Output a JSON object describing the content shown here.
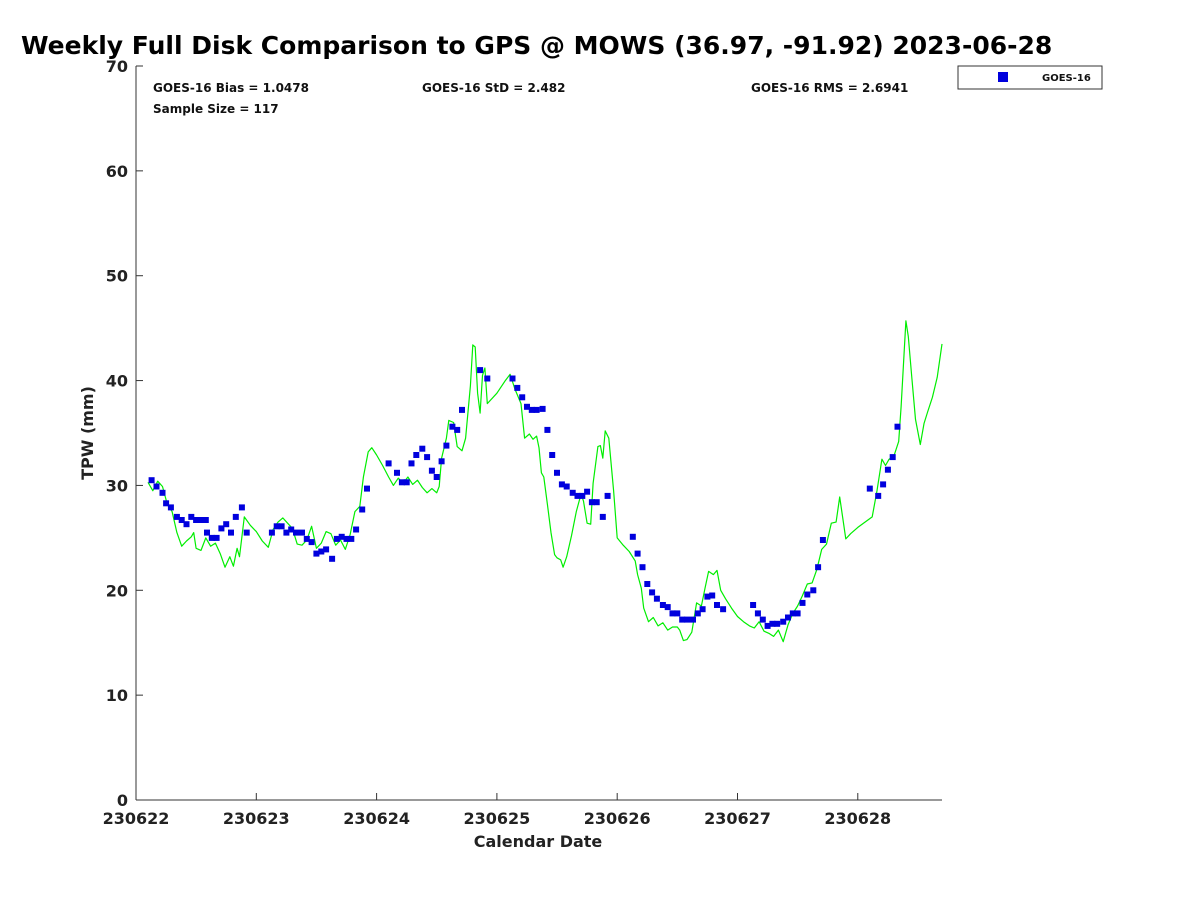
{
  "chart_data": {
    "type": "scatter",
    "title": "Weekly Full Disk Comparison to GPS @ MOWS (36.97, -91.92) 2023-06-28",
    "xlabel": "Calendar Date",
    "ylabel": "TPW (mm)",
    "xlim": [
      0,
      6.7
    ],
    "ylim": [
      0,
      70
    ],
    "x_ticks": [
      0,
      1,
      2,
      3,
      4,
      5,
      6
    ],
    "x_tick_labels": [
      "230622",
      "230623",
      "230624",
      "230625",
      "230626",
      "230627",
      "230628"
    ],
    "y_ticks": [
      0,
      10,
      20,
      30,
      40,
      50,
      60,
      70
    ],
    "y_tick_labels": [
      "0",
      "10",
      "20",
      "30",
      "40",
      "50",
      "60",
      "70"
    ],
    "grid": false,
    "legend": {
      "position": "top-right-outside",
      "entries": [
        "GOES-16"
      ]
    },
    "stats": {
      "bias": "GOES-16 Bias = 1.0478",
      "std": "GOES-16 StD = 2.482",
      "rms": "GOES-16 RMS = 2.6941",
      "sample": "Sample Size = 117"
    },
    "series": [
      {
        "name": "GOES-16",
        "kind": "scatter",
        "marker": "square",
        "color": "#0000dd",
        "points": [
          [
            0.13,
            30.5
          ],
          [
            0.17,
            29.9
          ],
          [
            0.22,
            29.3
          ],
          [
            0.25,
            28.3
          ],
          [
            0.29,
            27.9
          ],
          [
            0.34,
            27.0
          ],
          [
            0.38,
            26.7
          ],
          [
            0.42,
            26.3
          ],
          [
            0.46,
            27.0
          ],
          [
            0.5,
            26.7
          ],
          [
            0.54,
            26.7
          ],
          [
            0.58,
            26.7
          ],
          [
            0.59,
            25.5
          ],
          [
            0.63,
            25.0
          ],
          [
            0.67,
            25.0
          ],
          [
            0.71,
            25.9
          ],
          [
            0.75,
            26.3
          ],
          [
            0.79,
            25.5
          ],
          [
            0.83,
            27.0
          ],
          [
            0.88,
            27.9
          ],
          [
            0.92,
            25.5
          ],
          [
            1.13,
            25.5
          ],
          [
            1.17,
            26.1
          ],
          [
            1.21,
            26.1
          ],
          [
            1.25,
            25.5
          ],
          [
            1.29,
            25.8
          ],
          [
            1.33,
            25.5
          ],
          [
            1.38,
            25.5
          ],
          [
            1.42,
            24.9
          ],
          [
            1.46,
            24.6
          ],
          [
            1.5,
            23.5
          ],
          [
            1.54,
            23.7
          ],
          [
            1.58,
            23.9
          ],
          [
            1.63,
            23.0
          ],
          [
            1.67,
            24.9
          ],
          [
            1.71,
            25.1
          ],
          [
            1.75,
            24.9
          ],
          [
            1.79,
            24.9
          ],
          [
            1.83,
            25.8
          ],
          [
            1.88,
            27.7
          ],
          [
            1.92,
            29.7
          ],
          [
            2.1,
            32.1
          ],
          [
            2.17,
            31.2
          ],
          [
            2.21,
            30.3
          ],
          [
            2.25,
            30.3
          ],
          [
            2.29,
            32.1
          ],
          [
            2.33,
            32.9
          ],
          [
            2.38,
            33.5
          ],
          [
            2.42,
            32.7
          ],
          [
            2.46,
            31.4
          ],
          [
            2.5,
            30.8
          ],
          [
            2.54,
            32.3
          ],
          [
            2.58,
            33.8
          ],
          [
            2.63,
            35.6
          ],
          [
            2.67,
            35.3
          ],
          [
            2.71,
            37.2
          ],
          [
            2.86,
            41.0
          ],
          [
            2.92,
            40.2
          ],
          [
            3.13,
            40.2
          ],
          [
            3.17,
            39.3
          ],
          [
            3.21,
            38.4
          ],
          [
            3.25,
            37.5
          ],
          [
            3.29,
            37.2
          ],
          [
            3.33,
            37.2
          ],
          [
            3.38,
            37.3
          ],
          [
            3.42,
            35.3
          ],
          [
            3.46,
            32.9
          ],
          [
            3.5,
            31.2
          ],
          [
            3.54,
            30.1
          ],
          [
            3.58,
            29.9
          ],
          [
            3.63,
            29.3
          ],
          [
            3.67,
            29.0
          ],
          [
            3.71,
            29.0
          ],
          [
            3.75,
            29.4
          ],
          [
            3.79,
            28.4
          ],
          [
            3.83,
            28.4
          ],
          [
            3.88,
            27.0
          ],
          [
            3.92,
            29.0
          ],
          [
            4.13,
            25.1
          ],
          [
            4.17,
            23.5
          ],
          [
            4.21,
            22.2
          ],
          [
            4.25,
            20.6
          ],
          [
            4.29,
            19.8
          ],
          [
            4.33,
            19.2
          ],
          [
            4.38,
            18.6
          ],
          [
            4.42,
            18.4
          ],
          [
            4.46,
            17.8
          ],
          [
            4.5,
            17.8
          ],
          [
            4.54,
            17.2
          ],
          [
            4.58,
            17.2
          ],
          [
            4.63,
            17.2
          ],
          [
            4.67,
            17.8
          ],
          [
            4.71,
            18.2
          ],
          [
            4.75,
            19.4
          ],
          [
            4.79,
            19.5
          ],
          [
            4.83,
            18.6
          ],
          [
            4.88,
            18.2
          ],
          [
            5.13,
            18.6
          ],
          [
            5.17,
            17.8
          ],
          [
            5.21,
            17.2
          ],
          [
            5.25,
            16.6
          ],
          [
            5.29,
            16.8
          ],
          [
            5.33,
            16.8
          ],
          [
            5.38,
            17.0
          ],
          [
            5.42,
            17.4
          ],
          [
            5.46,
            17.8
          ],
          [
            5.5,
            17.8
          ],
          [
            5.54,
            18.8
          ],
          [
            5.58,
            19.6
          ],
          [
            5.63,
            20.0
          ],
          [
            5.67,
            22.2
          ],
          [
            5.71,
            24.8
          ],
          [
            6.1,
            29.7
          ],
          [
            6.17,
            29.0
          ],
          [
            6.21,
            30.1
          ],
          [
            6.25,
            31.5
          ],
          [
            6.29,
            32.7
          ],
          [
            6.33,
            35.6
          ]
        ]
      },
      {
        "name": "GPS",
        "kind": "line",
        "color": "#00ee00",
        "points": [
          [
            0.1,
            30.3
          ],
          [
            0.14,
            29.5
          ],
          [
            0.18,
            30.4
          ],
          [
            0.22,
            29.9
          ],
          [
            0.26,
            28.2
          ],
          [
            0.3,
            27.5
          ],
          [
            0.34,
            25.5
          ],
          [
            0.38,
            24.2
          ],
          [
            0.42,
            24.7
          ],
          [
            0.46,
            25.1
          ],
          [
            0.48,
            25.5
          ],
          [
            0.5,
            24.0
          ],
          [
            0.54,
            23.8
          ],
          [
            0.58,
            25.0
          ],
          [
            0.62,
            24.2
          ],
          [
            0.66,
            24.5
          ],
          [
            0.7,
            23.5
          ],
          [
            0.74,
            22.2
          ],
          [
            0.78,
            23.2
          ],
          [
            0.81,
            22.3
          ],
          [
            0.84,
            24.0
          ],
          [
            0.86,
            23.2
          ],
          [
            0.9,
            27.0
          ],
          [
            0.95,
            26.2
          ],
          [
            1.0,
            25.6
          ],
          [
            1.05,
            24.7
          ],
          [
            1.1,
            24.1
          ],
          [
            1.14,
            25.8
          ],
          [
            1.18,
            26.5
          ],
          [
            1.22,
            26.9
          ],
          [
            1.26,
            26.4
          ],
          [
            1.3,
            25.9
          ],
          [
            1.34,
            24.4
          ],
          [
            1.38,
            24.3
          ],
          [
            1.42,
            24.8
          ],
          [
            1.46,
            26.1
          ],
          [
            1.5,
            24.0
          ],
          [
            1.54,
            24.5
          ],
          [
            1.58,
            25.6
          ],
          [
            1.62,
            25.4
          ],
          [
            1.66,
            24.3
          ],
          [
            1.7,
            24.8
          ],
          [
            1.74,
            23.9
          ],
          [
            1.78,
            25.3
          ],
          [
            1.82,
            27.5
          ],
          [
            1.86,
            28.0
          ],
          [
            1.89,
            30.8
          ],
          [
            1.93,
            33.2
          ],
          [
            1.96,
            33.6
          ],
          [
            2.0,
            32.9
          ],
          [
            2.05,
            31.9
          ],
          [
            2.1,
            30.8
          ],
          [
            2.14,
            30.0
          ],
          [
            2.18,
            30.7
          ],
          [
            2.22,
            30.2
          ],
          [
            2.26,
            30.8
          ],
          [
            2.3,
            30.1
          ],
          [
            2.34,
            30.5
          ],
          [
            2.38,
            29.8
          ],
          [
            2.42,
            29.3
          ],
          [
            2.46,
            29.7
          ],
          [
            2.5,
            29.3
          ],
          [
            2.52,
            29.9
          ],
          [
            2.54,
            32.6
          ],
          [
            2.58,
            34.5
          ],
          [
            2.6,
            36.2
          ],
          [
            2.64,
            36.0
          ],
          [
            2.67,
            33.7
          ],
          [
            2.71,
            33.3
          ],
          [
            2.74,
            34.5
          ],
          [
            2.78,
            39.5
          ],
          [
            2.8,
            43.4
          ],
          [
            2.82,
            43.2
          ],
          [
            2.84,
            38.8
          ],
          [
            2.86,
            36.9
          ],
          [
            2.88,
            40.5
          ],
          [
            2.9,
            41.2
          ],
          [
            2.92,
            37.8
          ],
          [
            3.0,
            38.8
          ],
          [
            3.07,
            40.0
          ],
          [
            3.11,
            40.6
          ],
          [
            3.15,
            39.2
          ],
          [
            3.2,
            37.8
          ],
          [
            3.23,
            34.5
          ],
          [
            3.27,
            34.9
          ],
          [
            3.3,
            34.4
          ],
          [
            3.33,
            34.7
          ],
          [
            3.35,
            33.6
          ],
          [
            3.37,
            31.2
          ],
          [
            3.39,
            30.8
          ],
          [
            3.42,
            28.2
          ],
          [
            3.45,
            25.5
          ],
          [
            3.48,
            23.4
          ],
          [
            3.5,
            23.1
          ],
          [
            3.53,
            22.9
          ],
          [
            3.55,
            22.2
          ],
          [
            3.58,
            23.2
          ],
          [
            3.62,
            25.2
          ],
          [
            3.66,
            27.5
          ],
          [
            3.7,
            29.2
          ],
          [
            3.72,
            28.5
          ],
          [
            3.75,
            26.4
          ],
          [
            3.78,
            26.3
          ],
          [
            3.8,
            30.2
          ],
          [
            3.84,
            33.7
          ],
          [
            3.86,
            33.8
          ],
          [
            3.88,
            32.6
          ],
          [
            3.9,
            35.2
          ],
          [
            3.93,
            34.5
          ],
          [
            3.97,
            29.5
          ],
          [
            4.0,
            25.0
          ],
          [
            4.05,
            24.3
          ],
          [
            4.1,
            23.7
          ],
          [
            4.15,
            22.8
          ],
          [
            4.17,
            21.5
          ],
          [
            4.2,
            20.2
          ],
          [
            4.22,
            18.3
          ],
          [
            4.26,
            17.0
          ],
          [
            4.3,
            17.4
          ],
          [
            4.34,
            16.6
          ],
          [
            4.38,
            16.9
          ],
          [
            4.42,
            16.2
          ],
          [
            4.46,
            16.5
          ],
          [
            4.5,
            16.5
          ],
          [
            4.52,
            16.2
          ],
          [
            4.55,
            15.2
          ],
          [
            4.58,
            15.3
          ],
          [
            4.62,
            16.0
          ],
          [
            4.66,
            18.8
          ],
          [
            4.7,
            18.5
          ],
          [
            4.73,
            20.2
          ],
          [
            4.76,
            21.8
          ],
          [
            4.8,
            21.5
          ],
          [
            4.83,
            21.9
          ],
          [
            4.86,
            20.0
          ],
          [
            4.9,
            19.2
          ],
          [
            4.95,
            18.3
          ],
          [
            5.0,
            17.5
          ],
          [
            5.05,
            17.0
          ],
          [
            5.1,
            16.6
          ],
          [
            5.14,
            16.4
          ],
          [
            5.18,
            17.0
          ],
          [
            5.22,
            16.1
          ],
          [
            5.26,
            15.9
          ],
          [
            5.3,
            15.6
          ],
          [
            5.34,
            16.2
          ],
          [
            5.38,
            15.1
          ],
          [
            5.42,
            16.7
          ],
          [
            5.46,
            17.8
          ],
          [
            5.5,
            18.5
          ],
          [
            5.54,
            19.5
          ],
          [
            5.58,
            20.6
          ],
          [
            5.62,
            20.7
          ],
          [
            5.66,
            22.0
          ],
          [
            5.7,
            23.9
          ],
          [
            5.74,
            24.4
          ],
          [
            5.78,
            26.4
          ],
          [
            5.82,
            26.5
          ],
          [
            5.85,
            28.9
          ],
          [
            5.9,
            24.9
          ],
          [
            5.94,
            25.4
          ],
          [
            6.0,
            26.0
          ],
          [
            6.06,
            26.5
          ],
          [
            6.12,
            27.0
          ],
          [
            6.16,
            29.5
          ],
          [
            6.2,
            32.5
          ],
          [
            6.23,
            31.9
          ],
          [
            6.26,
            32.5
          ],
          [
            6.3,
            32.8
          ],
          [
            6.34,
            34.2
          ],
          [
            6.36,
            37.5
          ],
          [
            6.4,
            45.7
          ],
          [
            6.42,
            44.2
          ],
          [
            6.45,
            40.2
          ],
          [
            6.48,
            36.3
          ],
          [
            6.52,
            33.9
          ],
          [
            6.55,
            35.9
          ],
          [
            6.58,
            37.0
          ],
          [
            6.62,
            38.4
          ],
          [
            6.66,
            40.3
          ],
          [
            6.7,
            43.5
          ]
        ]
      }
    ]
  }
}
